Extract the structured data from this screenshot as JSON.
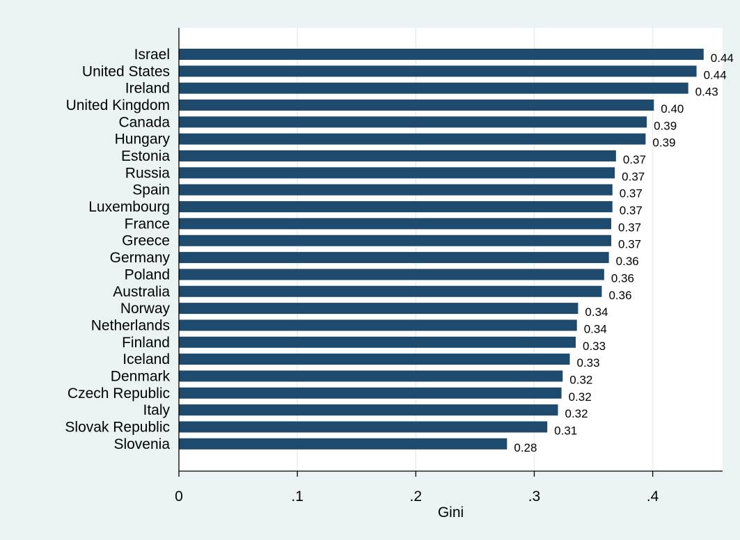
{
  "chart_data": {
    "type": "bar",
    "orientation": "horizontal",
    "categories": [
      "Israel",
      "United States",
      "Ireland",
      "United Kingdom",
      "Canada",
      "Hungary",
      "Estonia",
      "Russia",
      "Spain",
      "Luxembourg",
      "France",
      "Greece",
      "Germany",
      "Poland",
      "Australia",
      "Norway",
      "Netherlands",
      "Finland",
      "Iceland",
      "Denmark",
      "Czech Republic",
      "Italy",
      "Slovak Republic",
      "Slovenia"
    ],
    "values": [
      0.443,
      0.437,
      0.43,
      0.401,
      0.395,
      0.394,
      0.369,
      0.368,
      0.366,
      0.366,
      0.365,
      0.365,
      0.363,
      0.359,
      0.357,
      0.337,
      0.336,
      0.335,
      0.33,
      0.324,
      0.323,
      0.32,
      0.311,
      0.277
    ],
    "value_labels": [
      "0.44",
      "0.44",
      "0.43",
      "0.40",
      "0.39",
      "0.39",
      "0.37",
      "0.37",
      "0.37",
      "0.37",
      "0.37",
      "0.37",
      "0.36",
      "0.36",
      "0.36",
      "0.34",
      "0.34",
      "0.33",
      "0.33",
      "0.32",
      "0.32",
      "0.32",
      "0.31",
      "0.28"
    ],
    "xlabel": "Gini",
    "ylabel": "",
    "title": "",
    "xlim": [
      0,
      0.459
    ],
    "xticks": [
      0,
      0.1,
      0.2,
      0.3,
      0.4
    ],
    "xtick_labels": [
      "0",
      ".1",
      ".2",
      ".3",
      ".4"
    ],
    "grid": true,
    "colors": {
      "bar": "#1e4a6d",
      "outer_background": "#eaf2f3",
      "plot_background": "#ffffff",
      "gridline": "#e7eeef",
      "axis": "#000000"
    }
  }
}
